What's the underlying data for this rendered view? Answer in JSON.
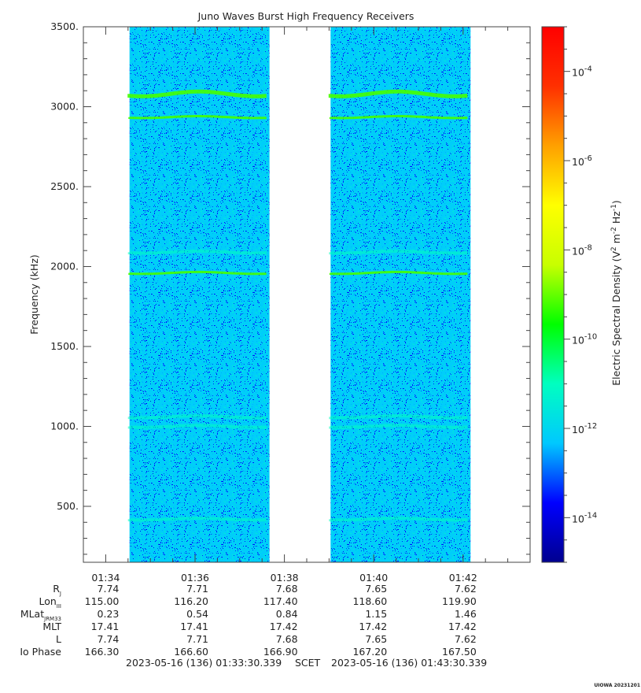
{
  "chart_data": {
    "type": "heatmap",
    "title": "Juno Waves Burst High Frequency Receivers",
    "ylabel": "Frequency (kHz)",
    "ylim": [
      150,
      3500
    ],
    "yticks": [
      500,
      1000,
      1500,
      2000,
      2500,
      3000,
      3500
    ],
    "ytick_labels": [
      "500.",
      "1000.",
      "1500.",
      "2000.",
      "2500.",
      "3000.",
      "3500."
    ],
    "xticks": [
      "01:34",
      "01:36",
      "01:38",
      "01:40",
      "01:42"
    ],
    "x_range_minutes": [
      "01:33:30",
      "01:43:30"
    ],
    "data_intervals": [
      [
        "01:34:32",
        "01:37:40"
      ],
      [
        "01:39:02",
        "01:42:10"
      ]
    ],
    "emission_lines_khz": [
      3080,
      2935,
      2090,
      1960,
      1060,
      1000,
      420
    ],
    "colorbar": {
      "label": "Electric Spectral Density (V² m⁻² Hz⁻¹)",
      "label_main": "Electric Spectral Density (V",
      "range_log10": [
        -15,
        -3
      ],
      "ticks": [
        -14,
        -12,
        -10,
        -8,
        -6,
        -4
      ],
      "tick_base": "10",
      "tick_exponents": [
        "-14",
        "-12",
        "-10",
        "-8",
        "-6",
        "-4"
      ],
      "colormap": [
        "#00008f",
        "#0000ff",
        "#00c8ff",
        "#00ffc0",
        "#00ff00",
        "#c8ff00",
        "#ffff00",
        "#ffa000",
        "#ff3000",
        "#ff0000"
      ]
    },
    "background_level_log10": -12.2
  },
  "ephemeris": {
    "rows": [
      {
        "label": "R",
        "sub": "J",
        "values": [
          "7.74",
          "7.71",
          "7.68",
          "7.65",
          "7.62"
        ]
      },
      {
        "label": "Lon",
        "sub": "III",
        "values": [
          "115.00",
          "116.20",
          "117.40",
          "118.60",
          "119.90"
        ]
      },
      {
        "label": "MLat",
        "sub": "JRM33",
        "values": [
          "0.23",
          "0.54",
          "0.84",
          "1.15",
          "1.46"
        ]
      },
      {
        "label": "MLT",
        "sub": "",
        "values": [
          "17.41",
          "17.41",
          "17.42",
          "17.42",
          "17.42"
        ]
      },
      {
        "label": "L",
        "sub": "",
        "values": [
          "7.74",
          "7.71",
          "7.68",
          "7.65",
          "7.62"
        ]
      },
      {
        "label": "Io Phase",
        "sub": "",
        "values": [
          "166.30",
          "166.60",
          "166.90",
          "167.20",
          "167.50"
        ]
      }
    ]
  },
  "time_range": {
    "start": "2023-05-16 (136) 01:33:30.339",
    "scet": "SCET",
    "end": "2023-05-16 (136) 01:43:30.339"
  },
  "credit": "UIOWA 20231201"
}
